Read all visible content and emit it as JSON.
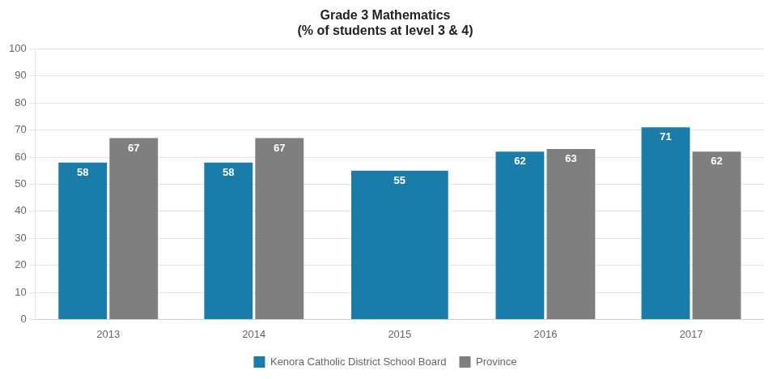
{
  "chart_data": {
    "type": "bar",
    "title": "Grade 3 Mathematics\n(% of students at level 3 & 4)",
    "categories": [
      "2013",
      "2014",
      "2015",
      "2016",
      "2017"
    ],
    "series": [
      {
        "name": "Kenora Catholic District School Board",
        "color": "#1a7ca8",
        "values": [
          58,
          58,
          55,
          62,
          71
        ]
      },
      {
        "name": "Province",
        "color": "#7f7f7f",
        "values": [
          67,
          67,
          null,
          63,
          62
        ]
      }
    ],
    "ylim": [
      0,
      100
    ],
    "yticks": [
      0,
      10,
      20,
      30,
      40,
      50,
      60,
      70,
      80,
      90,
      100
    ],
    "grid": true,
    "legend": "bottom",
    "data_labels": true
  }
}
